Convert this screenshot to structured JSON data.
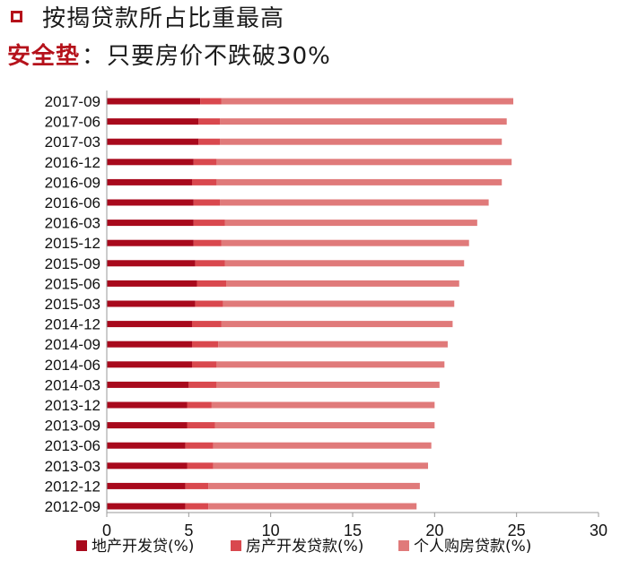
{
  "title": "按揭贷款所占比重最高",
  "subtitle": {
    "key": "安全垫",
    "sep": "：",
    "text": "只要房价不跌破30%"
  },
  "colors": {
    "accent": "#b5121b",
    "series": [
      "#a8091c",
      "#d9484e",
      "#e07a7a"
    ]
  },
  "chart_data": {
    "type": "bar",
    "orientation": "horizontal",
    "stacked": true,
    "categories": [
      "2017-09",
      "2017-06",
      "2017-03",
      "2016-12",
      "2016-09",
      "2016-06",
      "2016-03",
      "2015-12",
      "2015-09",
      "2015-06",
      "2015-03",
      "2014-12",
      "2014-09",
      "2014-06",
      "2014-03",
      "2013-12",
      "2013-09",
      "2013-06",
      "2013-03",
      "2012-12",
      "2012-09"
    ],
    "series": [
      {
        "name": "地产开发贷(%)",
        "values": [
          5.7,
          5.6,
          5.6,
          5.3,
          5.2,
          5.3,
          5.3,
          5.3,
          5.4,
          5.5,
          5.4,
          5.2,
          5.2,
          5.2,
          5.0,
          4.9,
          4.9,
          4.8,
          4.9,
          4.8,
          4.8
        ]
      },
      {
        "name": "房产开发贷款(%)",
        "values": [
          1.3,
          1.3,
          1.3,
          1.4,
          1.5,
          1.6,
          1.9,
          1.7,
          1.8,
          1.8,
          1.7,
          1.8,
          1.6,
          1.5,
          1.7,
          1.5,
          1.7,
          1.7,
          1.6,
          1.4,
          1.4
        ]
      },
      {
        "name": "个人购房贷款(%)",
        "values": [
          17.8,
          17.5,
          17.2,
          18.0,
          17.4,
          16.4,
          15.4,
          15.1,
          14.6,
          14.2,
          14.1,
          14.1,
          14.0,
          13.9,
          13.6,
          13.6,
          13.4,
          13.3,
          13.1,
          12.9,
          12.7
        ]
      }
    ],
    "x_ticks": [
      "0",
      "5",
      "10",
      "15",
      "20",
      "25",
      "30"
    ],
    "xlim": [
      0,
      30
    ],
    "legend_position": "bottom",
    "grid": false
  }
}
